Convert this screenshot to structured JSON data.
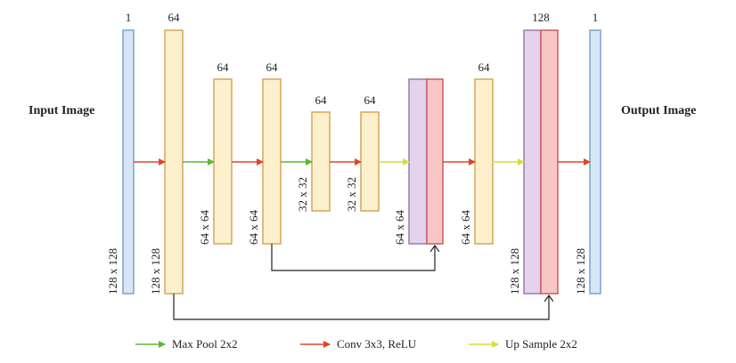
{
  "labels": {
    "input": "Input Image",
    "output": "Output Image"
  },
  "blocks": [
    {
      "top": "1",
      "side": "128 x 128"
    },
    {
      "top": "64",
      "side": "128 x 128"
    },
    {
      "top": "64",
      "side": "64 x 64"
    },
    {
      "top": "64",
      "side": "64 x 64"
    },
    {
      "top": "64",
      "side": "32 x 32"
    },
    {
      "top": "64",
      "side": "32 x 32"
    },
    {
      "top": "",
      "side": "64 x 64"
    },
    {
      "top": "64",
      "side": "64 x 64"
    },
    {
      "top": "128",
      "side": "128 x 128"
    },
    {
      "top": "1",
      "side": "128 x 128"
    }
  ],
  "legend": [
    {
      "label": "Max Pool 2x2",
      "color": "#5cb82e"
    },
    {
      "label": "Conv 3x3, ReLU",
      "color": "#e0452b"
    },
    {
      "label": "Up Sample 2x2",
      "color": "#d6dc3a"
    }
  ],
  "colors": {
    "blue_fill": "#d6e6f5",
    "blue_stroke": "#7aa3cc",
    "yellow_fill": "#fdf0cc",
    "yellow_stroke": "#d4a85a",
    "purple_fill": "#e3d3ec",
    "purple_stroke": "#9a7bb0",
    "pink_fill": "#f9c6c6",
    "pink_stroke": "#cc5a5a",
    "skip": "#222222"
  }
}
